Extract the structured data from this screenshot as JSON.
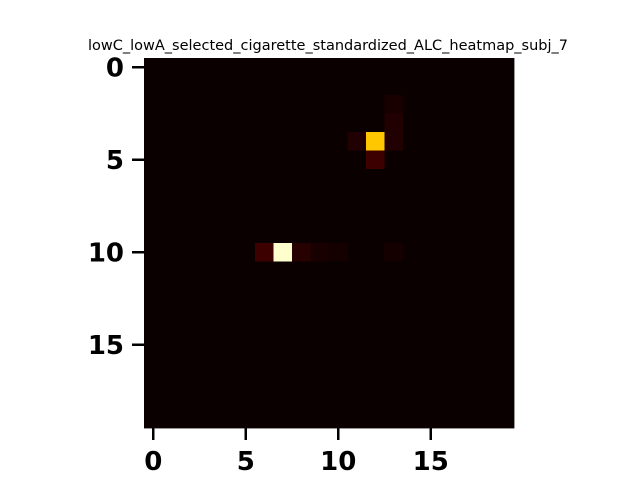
{
  "chart_data": {
    "type": "heatmap",
    "title": "lowC_lowA_selected_cigarette_standardized_ALC_heatmap_subj_7",
    "xlabel": "",
    "ylabel": "",
    "rows": 20,
    "cols": 20,
    "x_ticks": [
      0,
      5,
      10,
      15
    ],
    "y_ticks": [
      0,
      5,
      10,
      15
    ],
    "xlim": [
      -0.5,
      19.5
    ],
    "ylim": [
      19.5,
      -0.5
    ],
    "colormap": "hot",
    "vmin": 0.0,
    "vmax": 1.0,
    "grid": false,
    "background_value": 0.0,
    "cells": [
      {
        "row": 2,
        "col": 13,
        "value": 0.02
      },
      {
        "row": 3,
        "col": 13,
        "value": 0.03
      },
      {
        "row": 4,
        "col": 11,
        "value": 0.03
      },
      {
        "row": 4,
        "col": 12,
        "value": 0.65
      },
      {
        "row": 4,
        "col": 13,
        "value": 0.03
      },
      {
        "row": 5,
        "col": 12,
        "value": 0.07
      },
      {
        "row": 10,
        "col": 6,
        "value": 0.07
      },
      {
        "row": 10,
        "col": 7,
        "value": 0.95
      },
      {
        "row": 10,
        "col": 8,
        "value": 0.04
      },
      {
        "row": 10,
        "col": 9,
        "value": 0.02
      },
      {
        "row": 10,
        "col": 10,
        "value": 0.015
      },
      {
        "row": 10,
        "col": 13,
        "value": 0.015
      }
    ]
  }
}
